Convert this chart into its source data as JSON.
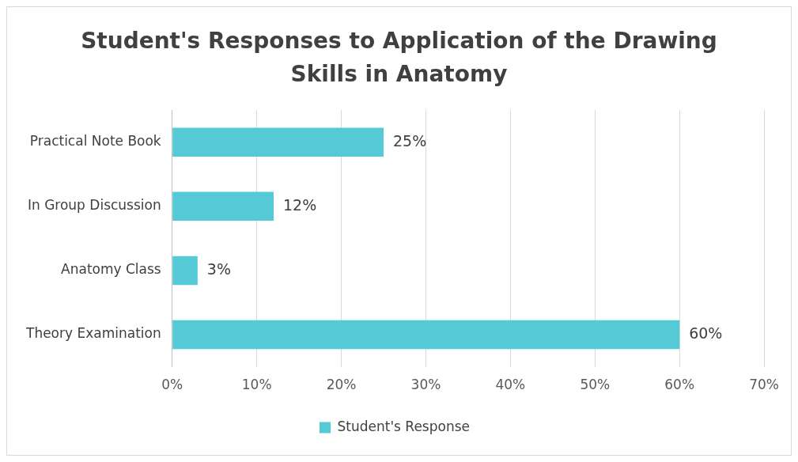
{
  "chart_data": {
    "type": "bar",
    "orientation": "horizontal",
    "title": "Student's Responses to Application of the Drawing Skills in Anatomy",
    "categories": [
      "Practical Note Book",
      "In Group Discussion",
      "Anatomy Class",
      "Theory Examination"
    ],
    "series": [
      {
        "name": "Student's Response",
        "color": "#55c9d6",
        "values": [
          25,
          12,
          3,
          60
        ],
        "value_labels": [
          "25%",
          "12%",
          "3%",
          "60%"
        ]
      }
    ],
    "xlim": [
      0,
      70
    ],
    "xticks": [
      {
        "value": 0,
        "label": "0%"
      },
      {
        "value": 10,
        "label": "10%"
      },
      {
        "value": 20,
        "label": "20%"
      },
      {
        "value": 30,
        "label": "30%"
      },
      {
        "value": 40,
        "label": "40%"
      },
      {
        "value": 50,
        "label": "50%"
      },
      {
        "value": 60,
        "label": "60%"
      },
      {
        "value": 70,
        "label": "70%"
      }
    ],
    "grid": "x",
    "legend": "bottom"
  }
}
